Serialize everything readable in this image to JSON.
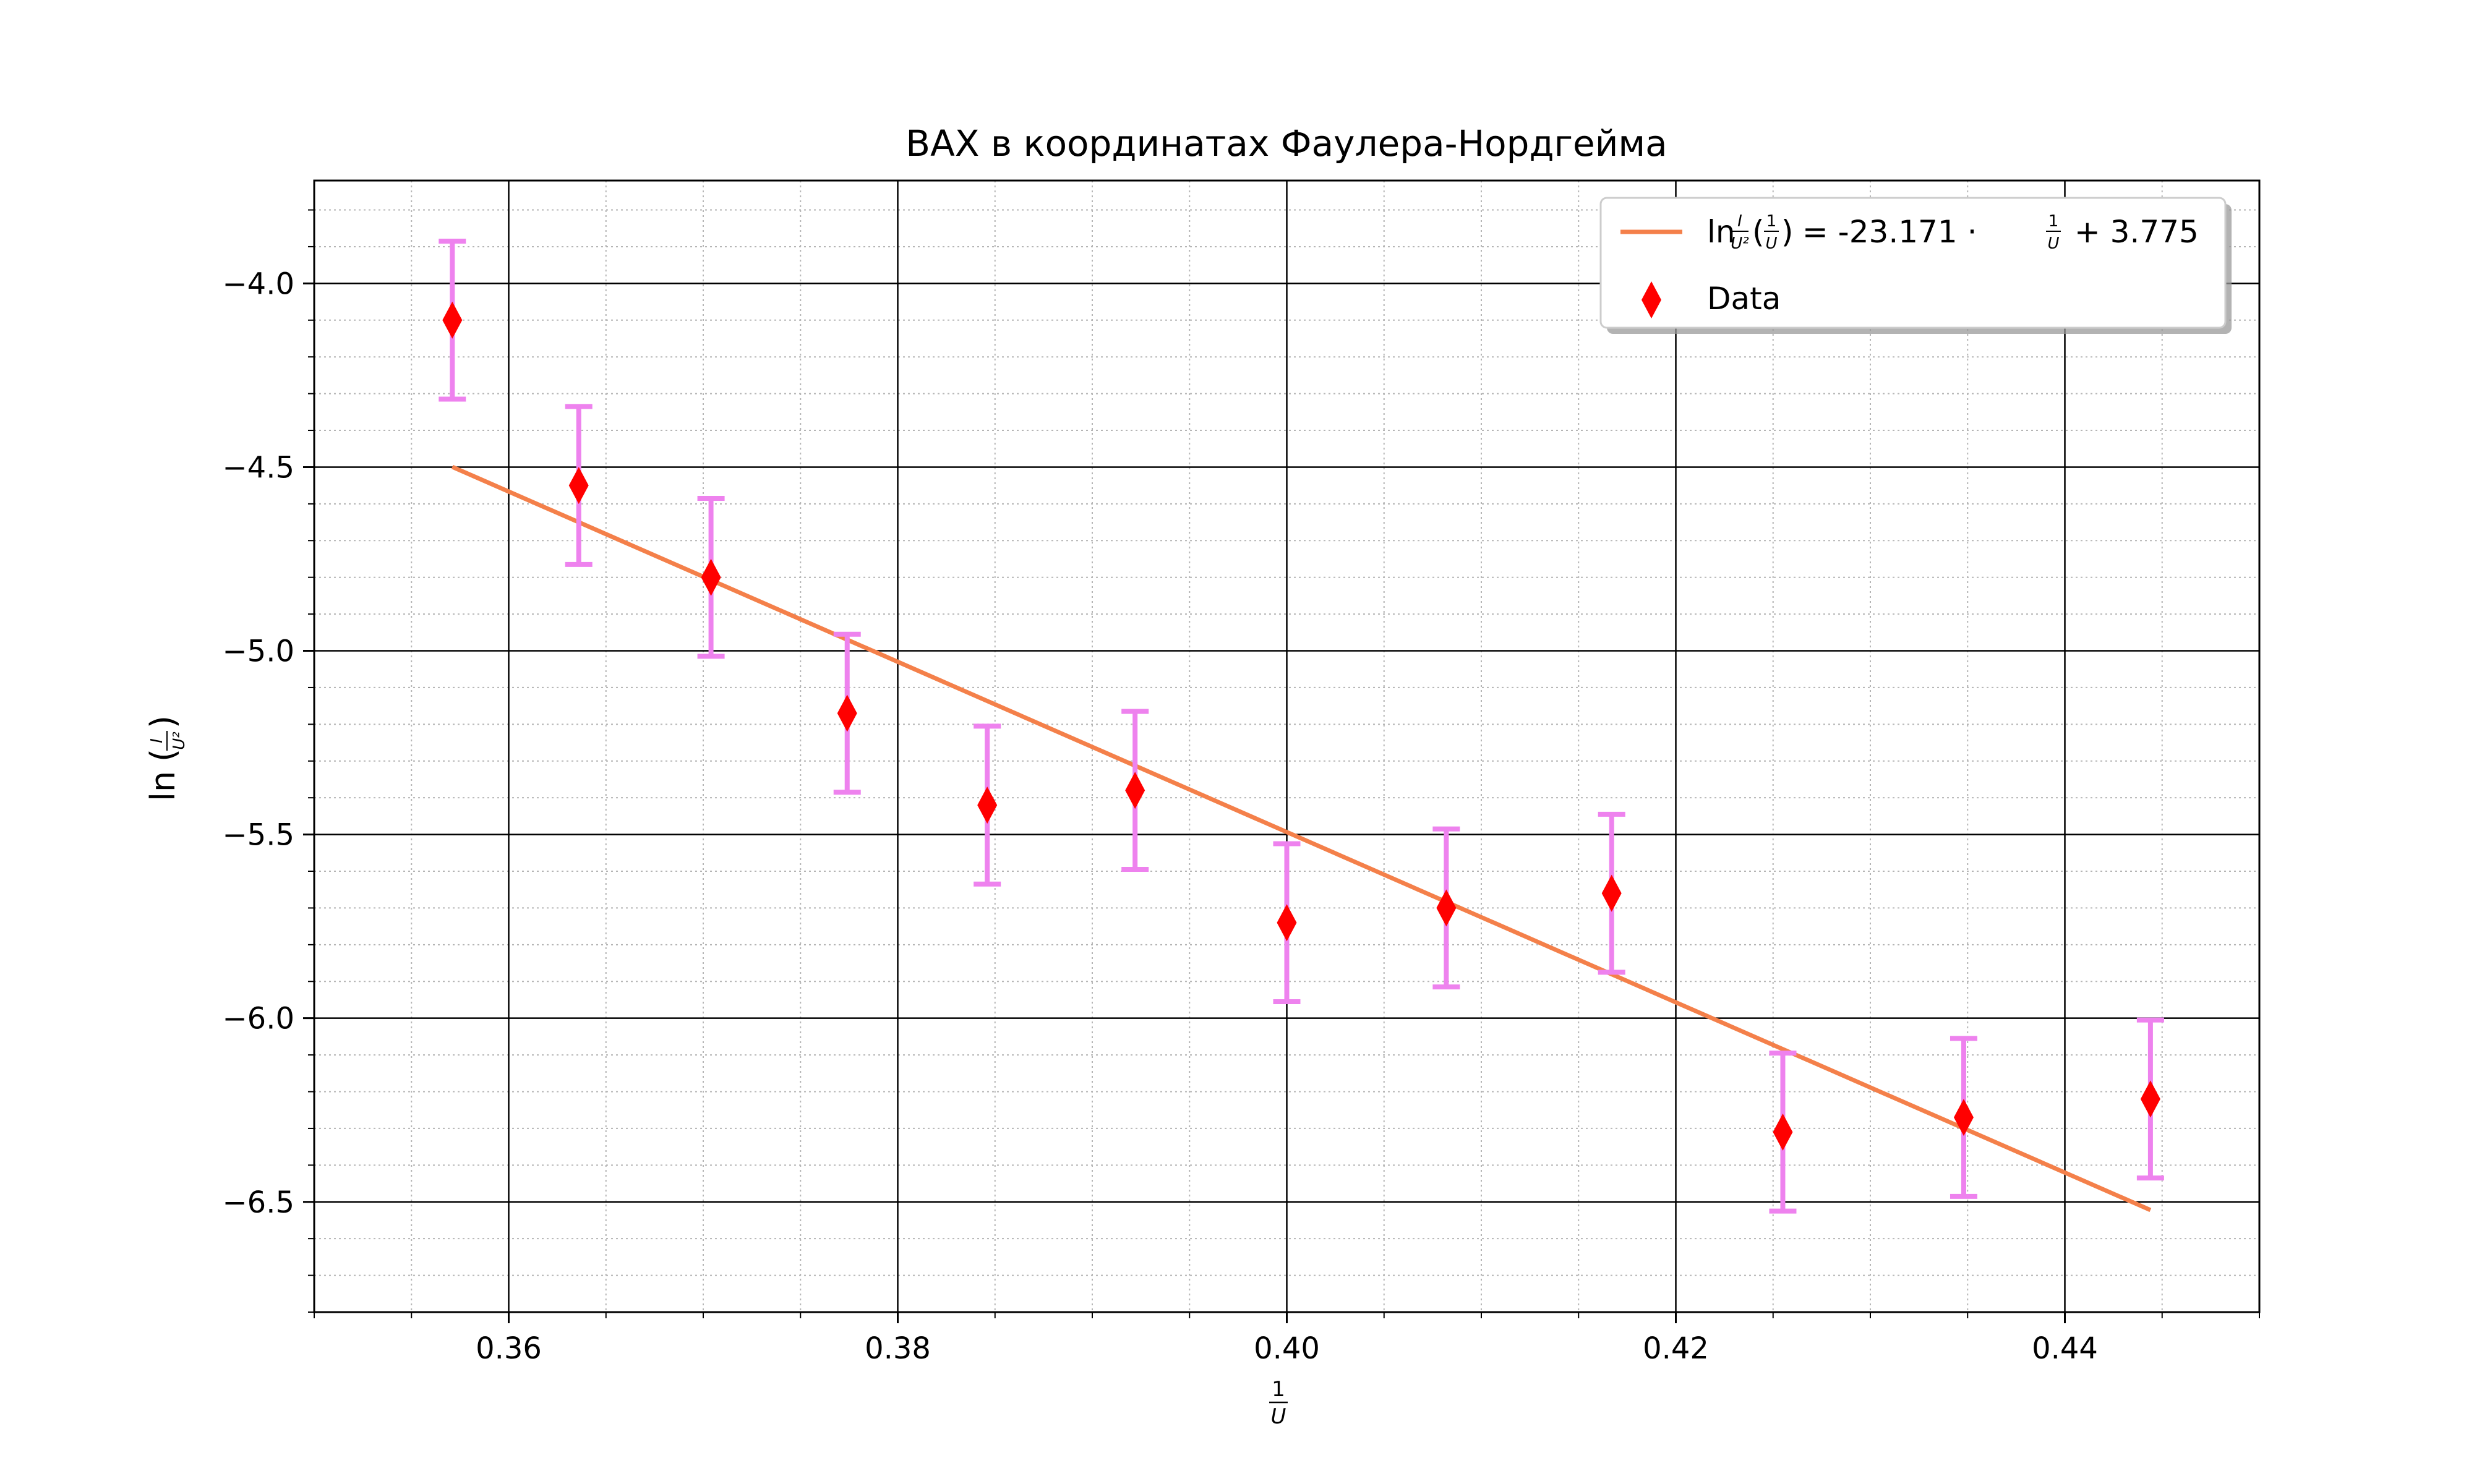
{
  "chart_data": {
    "type": "scatter",
    "title": "ВАХ в координатах Фаулера-Нордгейма",
    "xlabel": {
      "num": "1",
      "den": "U"
    },
    "ylabel": {
      "fn": "ln",
      "num": "I",
      "den": "U²"
    },
    "xlim": [
      0.35,
      0.45
    ],
    "ylim": [
      -6.8,
      -3.72
    ],
    "x_ticks": [
      "0.36",
      "0.38",
      "0.40",
      "0.42",
      "0.44"
    ],
    "y_ticks": [
      "−4.0",
      "−4.5",
      "−5.0",
      "−5.5",
      "−6.0",
      "−6.5"
    ],
    "x_tick_values": [
      0.36,
      0.38,
      0.4,
      0.42,
      0.44
    ],
    "y_tick_values": [
      -4.0,
      -4.5,
      -5.0,
      -5.5,
      -6.0,
      -6.5
    ],
    "grid": true,
    "minor_grid": true,
    "legend_position": "top-right",
    "series": [
      {
        "name": "Data",
        "marker": "diamond",
        "color": "#ff0000",
        "errorbar_color": "#ee82ee",
        "points": [
          {
            "x": 0.3571,
            "y": -4.1,
            "err": 0.215
          },
          {
            "x": 0.3636,
            "y": -4.55,
            "err": 0.215
          },
          {
            "x": 0.3704,
            "y": -4.8,
            "err": 0.215
          },
          {
            "x": 0.3774,
            "y": -5.17,
            "err": 0.215
          },
          {
            "x": 0.3846,
            "y": -5.42,
            "err": 0.215
          },
          {
            "x": 0.3922,
            "y": -5.38,
            "err": 0.215
          },
          {
            "x": 0.4,
            "y": -5.74,
            "err": 0.215
          },
          {
            "x": 0.4082,
            "y": -5.7,
            "err": 0.215
          },
          {
            "x": 0.4167,
            "y": -5.66,
            "err": 0.215
          },
          {
            "x": 0.4255,
            "y": -6.31,
            "err": 0.215
          },
          {
            "x": 0.4348,
            "y": -6.27,
            "err": 0.215
          },
          {
            "x": 0.4444,
            "y": -6.22,
            "err": 0.215
          }
        ]
      }
    ],
    "fit": {
      "color": "#f4804a",
      "slope": -23.171,
      "intercept": 3.775,
      "x_range": [
        0.3571,
        0.4444
      ],
      "legend_parts": {
        "fn": "ln",
        "frac_num": "I",
        "frac_den": "U²",
        "arg_num": "1",
        "arg_den": "U",
        "equals_slope": " = -23.171 · ",
        "unit_num": "1",
        "unit_den": "U",
        "tail": " + 3.775"
      }
    }
  }
}
